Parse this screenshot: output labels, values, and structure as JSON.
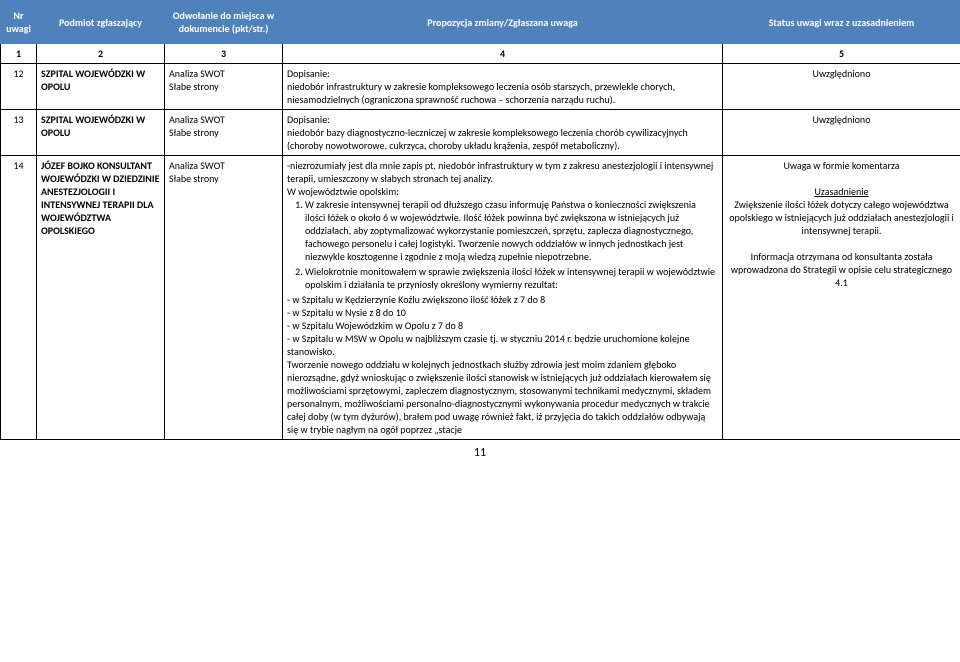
{
  "header": {
    "c1": "Nr uwagi",
    "c2": "Podmiot zgłaszający",
    "c3": "Odwołanie do miejsca w dokumencie (pkt/str.)",
    "c4": "Propozycja zmiany/Zgłaszana uwaga",
    "c5": "Status uwagi wraz z uzasadnieniem"
  },
  "numbers": {
    "c1": "1",
    "c2": "2",
    "c3": "3",
    "c4": "4",
    "c5": "5"
  },
  "rows": [
    {
      "nr": "12",
      "podmiot": "SZPITAL WOJEWÓDZKI W OPOLU",
      "odwol_l1": "Analiza SWOT",
      "odwol_l2": "Słabe strony",
      "prop_l1": "Dopisanie:",
      "prop_l2": "niedobór infrastruktury w zakresie kompleksowego leczenia osób starszych, przewlekle chorych, niesamodzielnych (ograniczona sprawność ruchowa – schorzenia narządu ruchu).",
      "status": "Uwzględniono"
    },
    {
      "nr": "13",
      "podmiot": "SZPITAL WOJEWÓDZKI W OPOLU",
      "odwol_l1": "Analiza SWOT",
      "odwol_l2": "Słabe strony",
      "prop_l1": "Dopisanie:",
      "prop_l2": "niedobór bazy diagnostyczno-leczniczej w zakresie kompleksowego leczenia chorób cywilizacyjnych (choroby nowotworowe, cukrzyca, choroby układu krążenia, zespół metaboliczny).",
      "status": "Uwzględniono"
    },
    {
      "nr": "14",
      "podmiot": "JÓZEF BOJKO KONSULTANT WOJEWÓDZKI W DZIEDZINIE ANESTEZJOLOGII I INTENSYWNEJ TERAPII DLA WOJEWÓDZTWA OPOLSKIEGO",
      "odwol_l1": "Analiza SWOT",
      "odwol_l2": "Słabe strony",
      "prop_intro": "-niezrozumiały jest dla mnie zapis pt. niedobór infrastruktury w tym z zakresu anestezjologii i intensywnej terapii, umieszczony w słabych stronach tej analizy.",
      "prop_woj": " W województwie opolskim:",
      "prop_li1": "W zakresie intensywnej terapii od dłuższego czasu informuję Państwa o konieczności zwiększenia ilości łóżek o około 6 w województwie. Ilość łóżek powinna być zwiększona w istniejących już oddziałach, aby zoptymalizować wykorzystanie pomieszczeń, sprzętu, zaplecza diagnostycznego, fachowego personelu i całej logistyki. Tworzenie nowych oddziałów w innych jednostkach jest niezwykle kosztogenne i zgodnie z moją wiedzą zupełnie niepotrzebne.",
      "prop_li2": "Wielokrotnie monitowałem w sprawie zwiększenia ilości łóżek w intensywnej terapii w województwie opolskim i działania te przyniosły określony wymierny rezultat:",
      "prop_dash1": "- w Szpitalu w Kędzierzynie Koźlu zwiększono ilość łóżek z 7 do 8",
      "prop_dash2": "- w Szpitalu w Nysie z 8 do 10",
      "prop_dash3": "- w Szpitalu Wojewódzkim w Opolu z 7 do 8",
      "prop_dash4": "-  w Szpitalu w MSW w Opolu w najbliższym czasie tj. w styczniu 2014 r. będzie uruchomione kolejne stanowisko.",
      "prop_tail": "Tworzenie nowego oddziału w kolejnych jednostkach służby zdrowia jest moim zdaniem głęboko nierozsądne, gdyż wnioskując o zwiększenie ilości stanowisk w istniejących już oddziałach kierowałem się możliwościami sprzętowymi, zapleczem diagnostycznym, stosowanymi technikami medycznymi, składem personalnym, możliwościami personalno-diagnostycznymi wykonywania procedur  medycznych w trakcie  całej doby (w tym dyżurów), brałem pod uwagę również fakt, iż przyjęcia do takich oddziałów odbywają się w trybie nagłym na ogół poprzez „stacje",
      "status_l1": "Uwaga w formie komentarza",
      "status_uz": "Uzasadnienie",
      "status_p1": "Zwiększenie ilości łóżek dotyczy całego województwa opolskiego w istniejących już oddziałach anestezjologii i intensywnej terapii.",
      "status_p2": "Informacja otrzymana od konsultanta została wprowadzona do Strategii w opisie celu strategicznego 4.1"
    }
  ],
  "page": "11"
}
